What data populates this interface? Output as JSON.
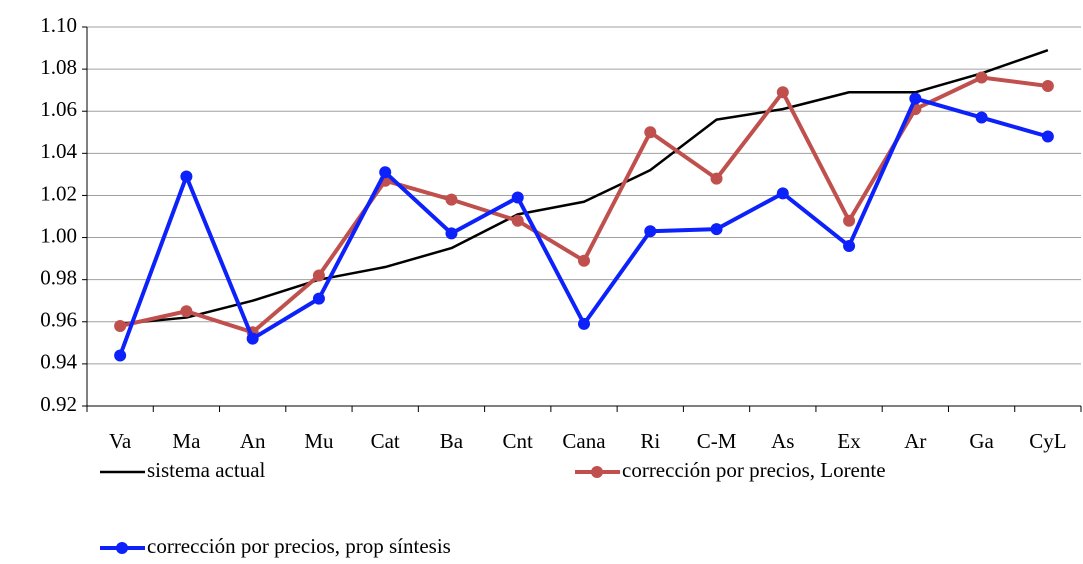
{
  "chart_data": {
    "type": "line",
    "categories": [
      "Va",
      "Ma",
      "An",
      "Mu",
      "Cat",
      "Ba",
      "Cnt",
      "Cana",
      "Ri",
      "C-M",
      "As",
      "Ex",
      "Ar",
      "Ga",
      "CyL"
    ],
    "series": [
      {
        "name": "sistema actual",
        "color": "#000000",
        "markers": false,
        "values": [
          0.959,
          0.962,
          0.97,
          0.98,
          0.986,
          0.995,
          1.011,
          1.017,
          1.032,
          1.056,
          1.061,
          1.069,
          1.069,
          1.078,
          1.089
        ]
      },
      {
        "name": "corrección por precios, Lorente",
        "color": "#c0504d",
        "markers": true,
        "values": [
          0.958,
          0.965,
          0.955,
          0.982,
          1.027,
          1.018,
          1.008,
          0.989,
          1.05,
          1.028,
          1.069,
          1.008,
          1.061,
          1.076,
          1.072
        ]
      },
      {
        "name": "corrección por precios, prop síntesis",
        "color": "#0d21fa",
        "markers": true,
        "values": [
          0.944,
          1.029,
          0.952,
          0.971,
          1.031,
          1.002,
          1.019,
          0.959,
          1.003,
          1.004,
          1.021,
          0.996,
          1.066,
          1.057,
          1.048
        ]
      }
    ],
    "ylim": [
      0.92,
      1.1
    ],
    "yticks": [
      0.92,
      0.94,
      0.96,
      0.98,
      {
        "value": 1.0,
        "label": "1.00"
      },
      1.02,
      1.04,
      1.06,
      1.08,
      {
        "value": 1.1,
        "label": "1.10"
      }
    ],
    "grid": true
  }
}
